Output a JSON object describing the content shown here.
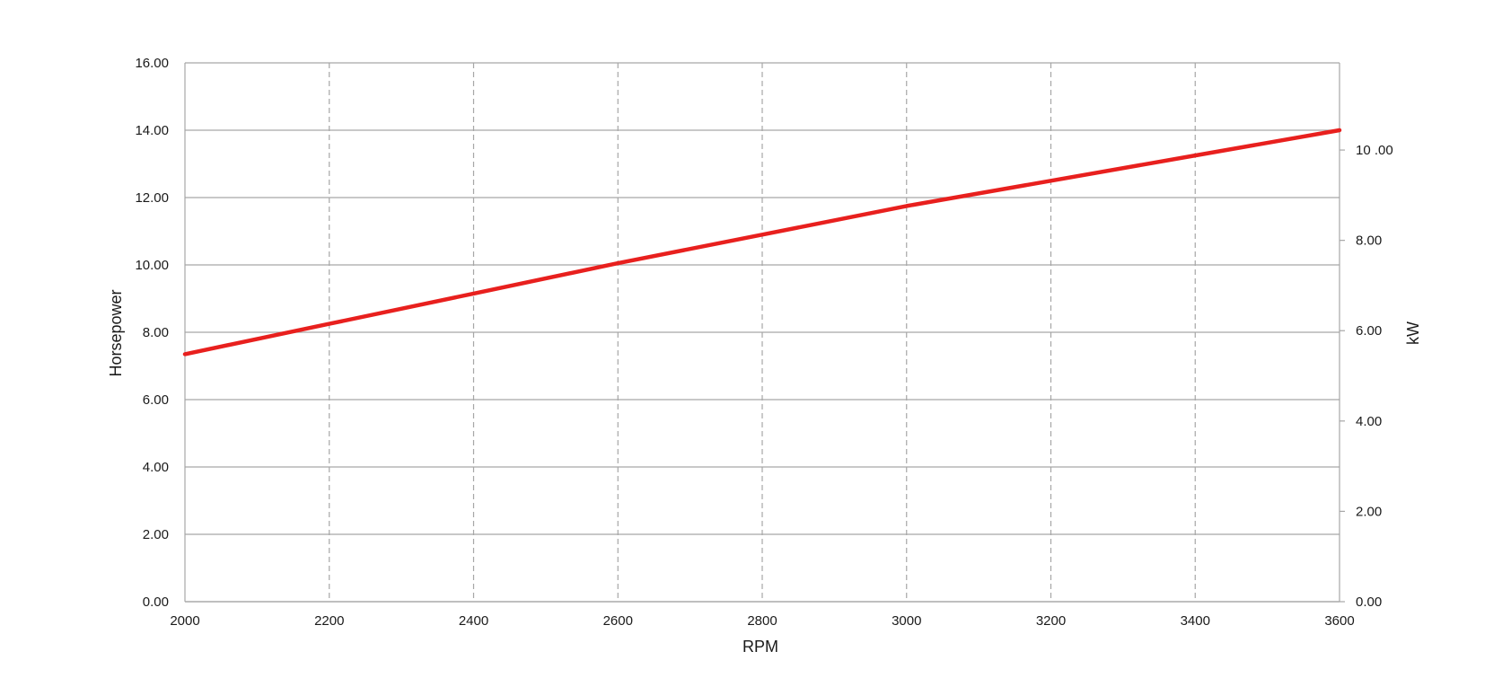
{
  "chart_data": {
    "type": "line",
    "title": "",
    "xlabel": "RPM",
    "ylabel": "Horsepower",
    "y2label": "kW",
    "xlim": [
      2000,
      3600
    ],
    "ylim": [
      0,
      16
    ],
    "y2lim": [
      0,
      11.93
    ],
    "xticks": [
      2000,
      2200,
      2400,
      2600,
      2800,
      3000,
      3200,
      3400,
      3600
    ],
    "xtick_labels": [
      "2000",
      "2200",
      "2400",
      "2600",
      "2800",
      "3000",
      "3200",
      "3400",
      "3600"
    ],
    "yticks": [
      0,
      2,
      4,
      6,
      8,
      10,
      12,
      14,
      16
    ],
    "ytick_labels": [
      "0.00",
      "2.00",
      "4.00",
      "6.00",
      "8.00",
      "10.00",
      "12.00",
      "14.00",
      "16.00"
    ],
    "y2ticks": [
      0,
      2,
      4,
      6,
      8,
      10
    ],
    "y2tick_labels": [
      "0.00",
      "2.00",
      "4.00",
      "6.00",
      "8.00",
      "10 .00"
    ],
    "grid": {
      "horizontal": "solid",
      "vertical": "dashed"
    },
    "series": [
      {
        "color": "#e8201e",
        "x": [
          2000,
          2200,
          2400,
          2600,
          2800,
          3000,
          3200,
          3400,
          3600
        ],
        "y": [
          7.35,
          8.25,
          9.15,
          10.05,
          10.9,
          11.75,
          12.5,
          13.25,
          14.0
        ]
      }
    ]
  }
}
